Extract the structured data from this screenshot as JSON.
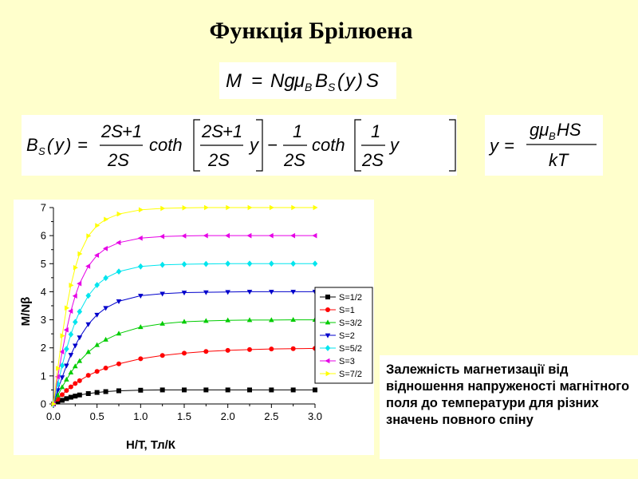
{
  "slide": {
    "title": "Функція Брілюена",
    "caption": "Залежність магнетизації від відношення напруженості магнітного поля до температури для різних значень  повного спіну"
  },
  "formulas": {
    "magnetization": "M = NgμBBS(y)S",
    "brillouin": "BS(y) = (2S+1)/(2S) coth[(2S+1)/(2S) y] − 1/(2S) coth[1/(2S) y]",
    "argument": "y = gμBHS / kT"
  },
  "chart_data": {
    "type": "line",
    "xlabel": "H/T, Тл/К",
    "ylabel": "M/Nβ",
    "xlim": [
      0.0,
      3.0
    ],
    "ylim": [
      0,
      7
    ],
    "xticks": [
      "0.0",
      "0.5",
      "1.0",
      "1.5",
      "2.0",
      "2.5",
      "3.0"
    ],
    "yticks": [
      "0",
      "1",
      "2",
      "3",
      "4",
      "5",
      "6",
      "7"
    ],
    "grid": false,
    "legend_position": "right",
    "x": [
      0.0,
      0.05,
      0.1,
      0.15,
      0.2,
      0.25,
      0.3,
      0.4,
      0.5,
      0.6,
      0.75,
      1.0,
      1.25,
      1.5,
      1.75,
      2.0,
      2.25,
      2.5,
      2.75,
      3.0
    ],
    "series": [
      {
        "name": "S=1/2",
        "color": "#000000",
        "marker": "square",
        "values": [
          0.0,
          0.07,
          0.13,
          0.19,
          0.24,
          0.28,
          0.32,
          0.37,
          0.41,
          0.44,
          0.47,
          0.49,
          0.5,
          0.5,
          0.5,
          0.5,
          0.5,
          0.5,
          0.5,
          0.5
        ]
      },
      {
        "name": "S=1",
        "color": "#ff0000",
        "marker": "circle",
        "values": [
          0.0,
          0.17,
          0.33,
          0.48,
          0.61,
          0.73,
          0.83,
          1.02,
          1.16,
          1.28,
          1.43,
          1.61,
          1.73,
          1.81,
          1.87,
          1.91,
          1.94,
          1.96,
          1.97,
          1.98
        ]
      },
      {
        "name": "S=3/2",
        "color": "#00cc00",
        "marker": "triangle-up",
        "values": [
          0.0,
          0.31,
          0.6,
          0.87,
          1.12,
          1.34,
          1.53,
          1.85,
          2.1,
          2.29,
          2.51,
          2.74,
          2.86,
          2.93,
          2.96,
          2.98,
          2.99,
          2.99,
          3.0,
          3.0
        ]
      },
      {
        "name": "S=2",
        "color": "#0000cc",
        "marker": "triangle-down",
        "values": [
          0.0,
          0.49,
          0.95,
          1.37,
          1.75,
          2.08,
          2.37,
          2.84,
          3.18,
          3.42,
          3.66,
          3.86,
          3.93,
          3.97,
          3.98,
          3.99,
          4.0,
          4.0,
          4.0,
          4.0
        ]
      },
      {
        "name": "S=5/2",
        "color": "#00e5ee",
        "marker": "diamond",
        "values": [
          0.0,
          0.71,
          1.37,
          1.96,
          2.48,
          2.92,
          3.29,
          3.86,
          4.24,
          4.49,
          4.72,
          4.9,
          4.96,
          4.98,
          4.99,
          5.0,
          5.0,
          5.0,
          5.0,
          5.0
        ]
      },
      {
        "name": "S=3",
        "color": "#e600e6",
        "marker": "triangle-left",
        "values": [
          0.0,
          0.97,
          1.86,
          2.64,
          3.31,
          3.85,
          4.29,
          4.91,
          5.3,
          5.54,
          5.75,
          5.91,
          5.97,
          5.99,
          6.0,
          6.0,
          6.0,
          6.0,
          6.0,
          6.0
        ]
      },
      {
        "name": "S=7/2",
        "color": "#ffff00",
        "marker": "triangle-right",
        "values": [
          0.0,
          1.27,
          2.43,
          3.42,
          4.23,
          4.86,
          5.35,
          5.99,
          6.36,
          6.58,
          6.77,
          6.92,
          6.97,
          6.99,
          7.0,
          7.0,
          7.0,
          7.0,
          7.0,
          7.0
        ]
      }
    ]
  }
}
